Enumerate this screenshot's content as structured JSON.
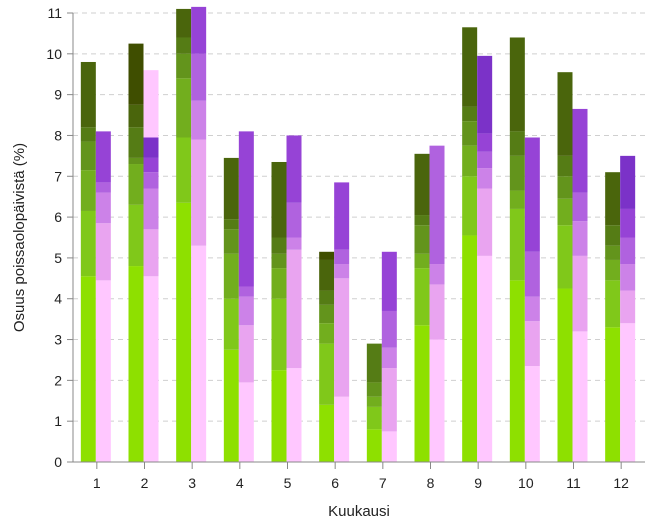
{
  "chart_data": {
    "type": "bar",
    "stacked": true,
    "xlabel": "Kuukausi",
    "ylabel": "Osuus poissaolopäivistä (%)",
    "ylim": [
      0,
      11
    ],
    "yticks": [
      0,
      1,
      2,
      3,
      4,
      5,
      6,
      7,
      8,
      9,
      10,
      11
    ],
    "grid": true,
    "categories": [
      "1",
      "2",
      "3",
      "4",
      "5",
      "6",
      "7",
      "8",
      "9",
      "10",
      "11",
      "12"
    ],
    "groups": [
      {
        "colors": [
          "#8ee000",
          "#80c81a",
          "#72ae1e",
          "#63941c",
          "#557c15",
          "#4a650c",
          "#3f4e00"
        ],
        "stacks": [
          [
            4.55,
            1.6,
            1.0,
            0.7,
            0.35,
            1.6
          ],
          [
            4.8,
            1.5,
            1.0,
            0.15,
            0.75,
            0.55,
            1.5
          ],
          [
            6.35,
            1.6,
            1.45,
            0.6,
            0.4,
            0.7
          ],
          [
            2.75,
            1.25,
            1.1,
            0.6,
            0.25,
            1.5
          ],
          [
            2.25,
            1.75,
            0.75,
            0.35,
            0.4,
            1.85
          ],
          [
            1.4,
            1.5,
            0.5,
            0.45,
            0.35,
            0.75,
            0.2
          ],
          [
            0.8,
            0.55,
            0.25,
            0.35,
            0.95
          ],
          [
            3.35,
            1.4,
            0.35,
            0.7,
            0.25,
            1.5
          ],
          [
            5.55,
            1.45,
            0.75,
            0.6,
            0.35,
            1.95
          ],
          [
            4.45,
            1.75,
            0.45,
            0.85,
            0.6,
            2.3
          ],
          [
            4.25,
            1.55,
            0.65,
            0.55,
            0.5,
            2.05
          ],
          [
            3.3,
            1.15,
            0.5,
            0.35,
            0.5,
            1.3
          ]
        ]
      },
      {
        "colors": [
          "#ffc7ff",
          "#e9a4f0",
          "#cc82e8",
          "#b062df",
          "#9643d6",
          "#7b32c8"
        ],
        "stacks": [
          [
            4.45,
            1.4,
            0.75,
            0.25,
            1.25
          ],
          [
            4.55,
            1.15,
            1.0,
            0.4,
            0.35,
            0.5,
            1.65
          ],
          [
            5.3,
            2.6,
            0.95,
            1.15,
            1.15
          ],
          [
            1.95,
            1.4,
            0.7,
            0.25,
            3.8
          ],
          [
            2.3,
            2.9,
            0.3,
            0.85,
            1.65
          ],
          [
            1.6,
            2.9,
            0.35,
            0.35,
            1.65
          ],
          [
            0.75,
            1.55,
            0.5,
            0.9,
            1.45
          ],
          [
            3.0,
            1.35,
            0.5,
            2.9
          ],
          [
            5.05,
            1.65,
            0.5,
            0.4,
            0.45,
            1.9
          ],
          [
            2.35,
            1.1,
            0.6,
            1.1,
            2.8
          ],
          [
            3.2,
            1.85,
            0.85,
            0.7,
            2.05
          ],
          [
            3.4,
            0.8,
            0.65,
            0.65,
            0.7,
            1.3
          ]
        ]
      }
    ]
  }
}
